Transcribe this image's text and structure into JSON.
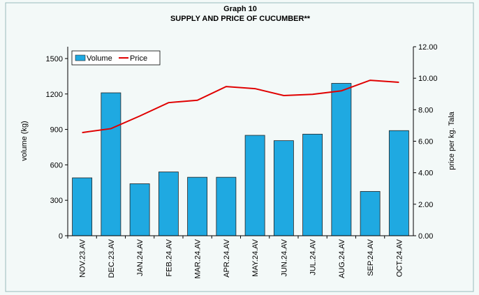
{
  "chart_data": {
    "type": "bar_line",
    "title": "Graph 10",
    "subtitle": "SUPPLY AND PRICE OF CUCUMBER**",
    "ylabel": "volume (kg)",
    "y2label": "price per kg. Tala",
    "categories": [
      "NOV.23.AV",
      "DEC.23.AV",
      "JAN.24.AV",
      "FEB.24.AV",
      "MAR.24.AV",
      "APR.24.AV",
      "MAY.24.AV",
      "JUN.24.AV",
      "JUL.24.AV",
      "AUG.24.AV",
      "SEP.24.AV",
      "OCT.24.AV"
    ],
    "series": [
      {
        "name": "Volume",
        "type": "bar",
        "color": "#1fa9e1",
        "values": [
          490,
          1210,
          440,
          540,
          495,
          495,
          850,
          805,
          860,
          1290,
          375,
          890
        ]
      },
      {
        "name": "Price",
        "type": "line",
        "axis": "y2",
        "color": "#e00000",
        "values": [
          6.55,
          6.8,
          7.6,
          8.45,
          8.6,
          9.47,
          9.34,
          8.9,
          8.98,
          9.2,
          9.87,
          9.74
        ]
      }
    ],
    "ylim": [
      0,
      1600
    ],
    "yticks": [
      0,
      300,
      600,
      900,
      1200,
      1500
    ],
    "y2lim": [
      0,
      12
    ],
    "y2ticks": [
      {
        "value": 0,
        "label": "0.00"
      },
      {
        "value": 2,
        "label": "2.00"
      },
      {
        "value": 4,
        "label": "4.00"
      },
      {
        "value": 6,
        "label": "6.00"
      },
      {
        "value": 8,
        "label": "8.00"
      },
      {
        "value": 10,
        "label": "10.00"
      },
      {
        "value": 12,
        "label": "12.00"
      }
    ],
    "legend": "top-left"
  }
}
